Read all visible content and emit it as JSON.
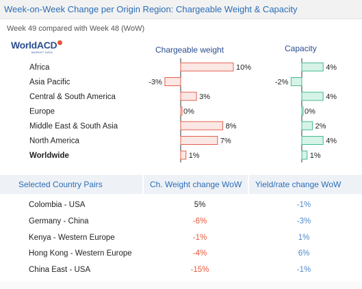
{
  "header": {
    "title": "Week-on-Week Change per Origin Region: Chargeable Weight & Capacity",
    "subtitle": "Week 49 compared with Week 48 (WoW)"
  },
  "logo": {
    "name": "WorldACD",
    "tagline": "MARKET DATA"
  },
  "colors": {
    "weight_bar_fill": "#fbe7e4",
    "weight_bar_stroke": "#e0604f",
    "capacity_bar_fill": "#d6f3e8",
    "capacity_bar_stroke": "#43b98a",
    "negative_text": "#e8563a",
    "yield_text": "#4f8ac9",
    "header_text": "#2b6cb5"
  },
  "chart_data": [
    {
      "type": "bar",
      "orientation": "horizontal",
      "title": "Chargeable weight",
      "categories": [
        "Africa",
        "Asia Pacific",
        "Central & South America",
        "Europe",
        "Middle East & South Asia",
        "North America",
        "Worldwide"
      ],
      "values": [
        10,
        -3,
        3,
        0,
        8,
        7,
        1
      ],
      "value_labels": [
        "10%",
        "-3%",
        "3%",
        "0%",
        "8%",
        "7%",
        "1%"
      ],
      "unit": "%"
    },
    {
      "type": "bar",
      "orientation": "horizontal",
      "title": "Capacity",
      "categories": [
        "Africa",
        "Asia Pacific",
        "Central & South America",
        "Europe",
        "Middle East & South Asia",
        "North America",
        "Worldwide"
      ],
      "values": [
        4,
        -2,
        4,
        0,
        2,
        4,
        1
      ],
      "value_labels": [
        "4%",
        "-2%",
        "4%",
        "0%",
        "2%",
        "4%",
        "1%"
      ],
      "unit": "%"
    }
  ],
  "table": {
    "headers": [
      "Selected Country Pairs",
      "Ch. Weight change WoW",
      "Yield/rate change WoW"
    ],
    "rows": [
      {
        "pair": "Colombia - USA",
        "weight": "5%",
        "yield": "-1%"
      },
      {
        "pair": "Germany - China",
        "weight": "-6%",
        "yield": "-3%"
      },
      {
        "pair": "Kenya - Western Europe",
        "weight": "-1%",
        "yield": "1%"
      },
      {
        "pair": "Hong Kong - Western Europe",
        "weight": "-4%",
        "yield": "6%"
      },
      {
        "pair": "China East - USA",
        "weight": "-15%",
        "yield": "-1%"
      }
    ]
  }
}
